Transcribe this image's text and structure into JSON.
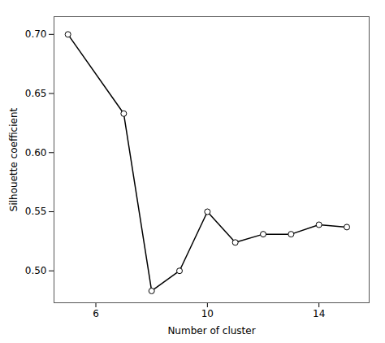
{
  "chart_data": {
    "type": "line",
    "x": [
      5,
      7,
      8,
      9,
      10,
      11,
      12,
      13,
      14,
      15
    ],
    "values": [
      0.7,
      0.633,
      0.483,
      0.5,
      0.55,
      0.524,
      0.531,
      0.531,
      0.539,
      0.537
    ],
    "xlabel": "Number of cluster",
    "ylabel": "Silhouette coefficient",
    "xlim": [
      4.5,
      15.8
    ],
    "ylim": [
      0.473,
      0.715
    ],
    "xticks": [
      6,
      10,
      14
    ],
    "yticks": [
      {
        "value": 0.5,
        "label": "0.50"
      },
      0.55,
      {
        "value": 0.6,
        "label": "0.60"
      },
      0.65,
      {
        "value": 0.7,
        "label": "0.70"
      }
    ],
    "color": "#000000",
    "marker": "circle"
  }
}
